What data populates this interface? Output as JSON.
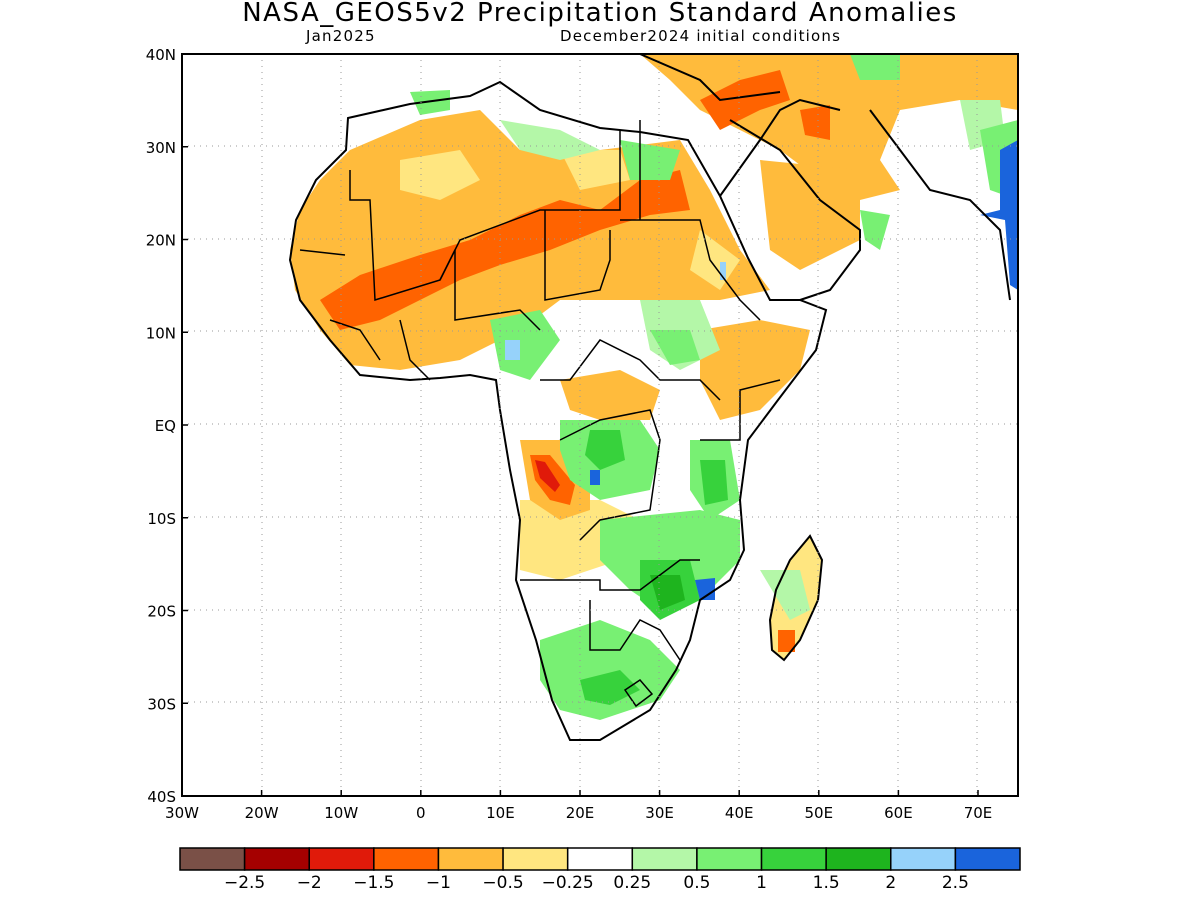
{
  "title": "NASA_GEOS5v2 Precipitation Standard Anomalies",
  "subtitle_left": "Jan2025",
  "subtitle_right": "December2024 initial conditions",
  "y_ticks": [
    "40N",
    "30N",
    "20N",
    "10N",
    "EQ",
    "10S",
    "20S",
    "30S",
    "40S"
  ],
  "x_ticks": [
    "30W",
    "20W",
    "10W",
    "0",
    "10E",
    "20E",
    "30E",
    "40E",
    "50E",
    "60E",
    "70E"
  ],
  "colorbar": {
    "colors": [
      "#7a5047",
      "#a50000",
      "#e01a0a",
      "#ff6300",
      "#ffbb3c",
      "#ffe680",
      "#ffffff",
      "#b4f7a8",
      "#78f073",
      "#37d23c",
      "#1eb41e",
      "#96d2fa",
      "#1a64dc"
    ],
    "labels": [
      "−2.5",
      "−2",
      "−1.5",
      "−1",
      "−0.5",
      "−0.25",
      "0.25",
      "0.5",
      "1",
      "1.5",
      "2",
      "2.5"
    ]
  }
}
